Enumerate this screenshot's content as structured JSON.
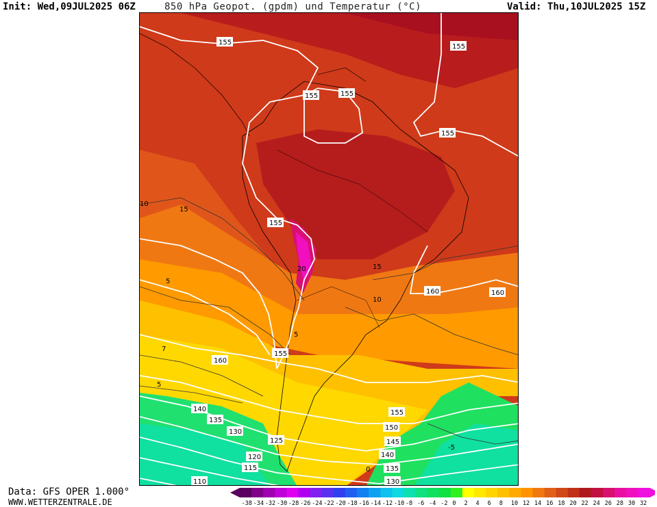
{
  "header": {
    "init": "Init: Wed,09JUL2025 06Z",
    "title": "850 hPa Geopot. (gpdm) und Temperatur (°C)",
    "valid": "Valid: Thu,10JUL2025 15Z"
  },
  "footer": {
    "data_source": "Data: GFS OPER 1.000°",
    "website": "WWW.WETTERZENTRALE.DE"
  },
  "map": {
    "region": "South America",
    "geopotential_labels": [
      "155",
      "155",
      "155",
      "155",
      "155",
      "155",
      "160",
      "160",
      "160",
      "140",
      "135",
      "130",
      "125",
      "120",
      "115",
      "110",
      "155",
      "150",
      "145",
      "140",
      "135",
      "130"
    ],
    "temperature_labels": [
      "10",
      "15",
      "15",
      "5",
      "10",
      "7",
      "5",
      "5",
      "20",
      "0",
      "-5"
    ]
  },
  "colorbar": {
    "ticks": [
      "-38",
      "-34",
      "-32",
      "-30",
      "-28",
      "-26",
      "-24",
      "-22",
      "-20",
      "-18",
      "-16",
      "-14",
      "-12",
      "-10",
      "-8",
      "-6",
      "-4",
      "-2",
      "0",
      "2",
      "4",
      "6",
      "8",
      "10",
      "12",
      "14",
      "16",
      "18",
      "20",
      "22",
      "24",
      "26",
      "28",
      "30",
      "32"
    ],
    "colors": [
      "#5a0060",
      "#80008a",
      "#a000b0",
      "#c000d8",
      "#e000f0",
      "#b000f0",
      "#8020f0",
      "#5a30f0",
      "#3040f0",
      "#2060f0",
      "#1080f0",
      "#10a0f0",
      "#10c0f0",
      "#10d8e0",
      "#10e0b0",
      "#10e080",
      "#10e060",
      "#10e040",
      "#30f020",
      "#ffff00",
      "#ffe800",
      "#ffd400",
      "#ffc000",
      "#ffaa00",
      "#ff9400",
      "#f07810",
      "#e06018",
      "#d04818",
      "#c03018",
      "#b01820",
      "#c01040",
      "#d81070",
      "#e810a0",
      "#f010c0",
      "#f010e0"
    ]
  }
}
